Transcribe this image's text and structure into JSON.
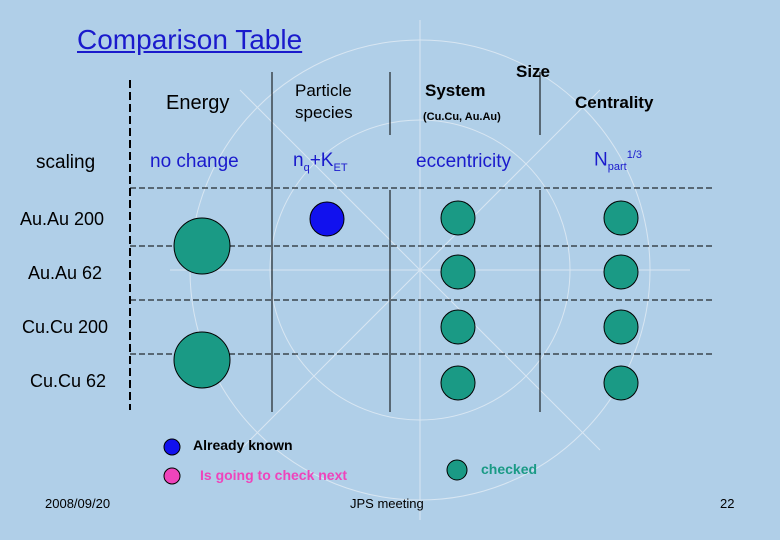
{
  "slide": {
    "title": "Comparison Table",
    "headers": {
      "energy": "Energy",
      "particle_line1": "Particle",
      "particle_line2": "species",
      "system": "System",
      "system_sub": "(Cu.Cu, Au.Au)",
      "size": "Size",
      "centrality": "Centrality"
    },
    "scaling": {
      "label": "scaling",
      "energy": "no change",
      "particle_main": "n",
      "particle_sub_q": "q",
      "particle_plus": "+K",
      "particle_sub_et": "ET",
      "system": "eccentricity",
      "centrality_main": "N",
      "centrality_sub": "part",
      "centrality_sup": "1/3"
    },
    "rows": [
      "Au.Au 200",
      "Au.Au 62",
      "Cu.Cu 200",
      "Cu.Cu 62"
    ],
    "legend": {
      "known": "Already known",
      "next": "Is going to check next",
      "checked": "checked"
    },
    "colors": {
      "title": "#1a1acc",
      "known": "#1111ee",
      "next": "#ee44bb",
      "checked": "#1a9a85",
      "background": "#b0cfe8"
    },
    "footer": {
      "date": "2008/09/20",
      "meeting": "JPS meeting",
      "page": "22"
    }
  }
}
